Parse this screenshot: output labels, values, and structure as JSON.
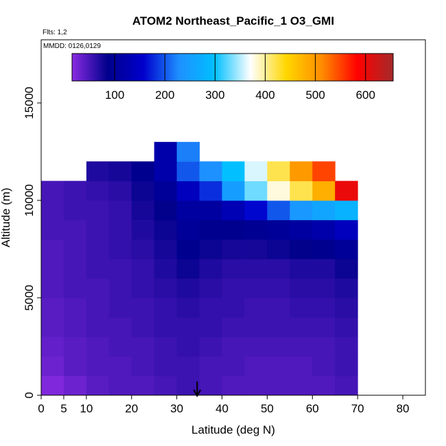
{
  "chart_data": {
    "type": "heatmap",
    "title": "ATOM2 Northeast_Pacific_1 O3_GMI",
    "annotations": [
      "Flts: 1,2",
      "MMDD: 0126,0129"
    ],
    "x_label": "Latitude (deg N)",
    "y_label": "Altitude (m)",
    "xlim": [
      0,
      85
    ],
    "xticks": [
      0,
      5,
      10,
      20,
      30,
      40,
      50,
      60,
      70,
      80
    ],
    "ylim": [
      0,
      18240
    ],
    "yticks": [
      0,
      5000,
      10000,
      15000
    ],
    "x_bins": [
      0,
      5,
      10,
      15,
      20,
      25,
      30,
      35,
      40,
      45,
      50,
      55,
      60,
      65,
      70
    ],
    "y_bins": [
      0,
      1000,
      2000,
      3000,
      4000,
      5000,
      6000,
      7000,
      8000,
      9000,
      10000,
      11000,
      12000,
      13000
    ],
    "z": [
      [
        20,
        30,
        40,
        45,
        45,
        50,
        55,
        50,
        45,
        45,
        45,
        45,
        45,
        50
      ],
      [
        30,
        40,
        45,
        45,
        50,
        55,
        55,
        50,
        50,
        45,
        45,
        45,
        50,
        55
      ],
      [
        35,
        40,
        45,
        50,
        50,
        55,
        60,
        55,
        50,
        50,
        50,
        50,
        50,
        55
      ],
      [
        40,
        45,
        50,
        50,
        55,
        60,
        60,
        60,
        55,
        55,
        55,
        55,
        55,
        60
      ],
      [
        40,
        45,
        50,
        55,
        55,
        60,
        65,
        60,
        60,
        55,
        55,
        60,
        60,
        65
      ],
      [
        45,
        50,
        50,
        55,
        60,
        65,
        70,
        65,
        60,
        60,
        60,
        65,
        65,
        70
      ],
      [
        45,
        50,
        55,
        55,
        60,
        70,
        80,
        70,
        65,
        65,
        65,
        70,
        70,
        80
      ],
      [
        45,
        50,
        55,
        60,
        65,
        75,
        90,
        80,
        75,
        75,
        80,
        85,
        90,
        100
      ],
      [
        50,
        50,
        55,
        60,
        70,
        80,
        100,
        90,
        90,
        95,
        100,
        110,
        120,
        140
      ],
      [
        50,
        55,
        55,
        60,
        75,
        85,
        110,
        110,
        130,
        160,
        200,
        240,
        260,
        280
      ],
      [
        50,
        55,
        60,
        65,
        80,
        100,
        140,
        180,
        250,
        330,
        380,
        420,
        480,
        600
      ],
      [
        null,
        null,
        70,
        75,
        90,
        120,
        200,
        230,
        300,
        360,
        420,
        500,
        550,
        null
      ],
      [
        null,
        null,
        null,
        null,
        null,
        120,
        220,
        null,
        null,
        null,
        null,
        null,
        null,
        null
      ]
    ],
    "clim": [
      15,
      655
    ],
    "cticks": [
      100,
      200,
      300,
      400,
      500,
      600
    ],
    "colorscale": [
      "#8a2be2",
      "#00008b",
      "#0000cd",
      "#1e90ff",
      "#00bfff",
      "#ffffff",
      "#ffd700",
      "#ff8c00",
      "#ff0000",
      "#a52a2a"
    ],
    "arrow_x": 34.5
  }
}
